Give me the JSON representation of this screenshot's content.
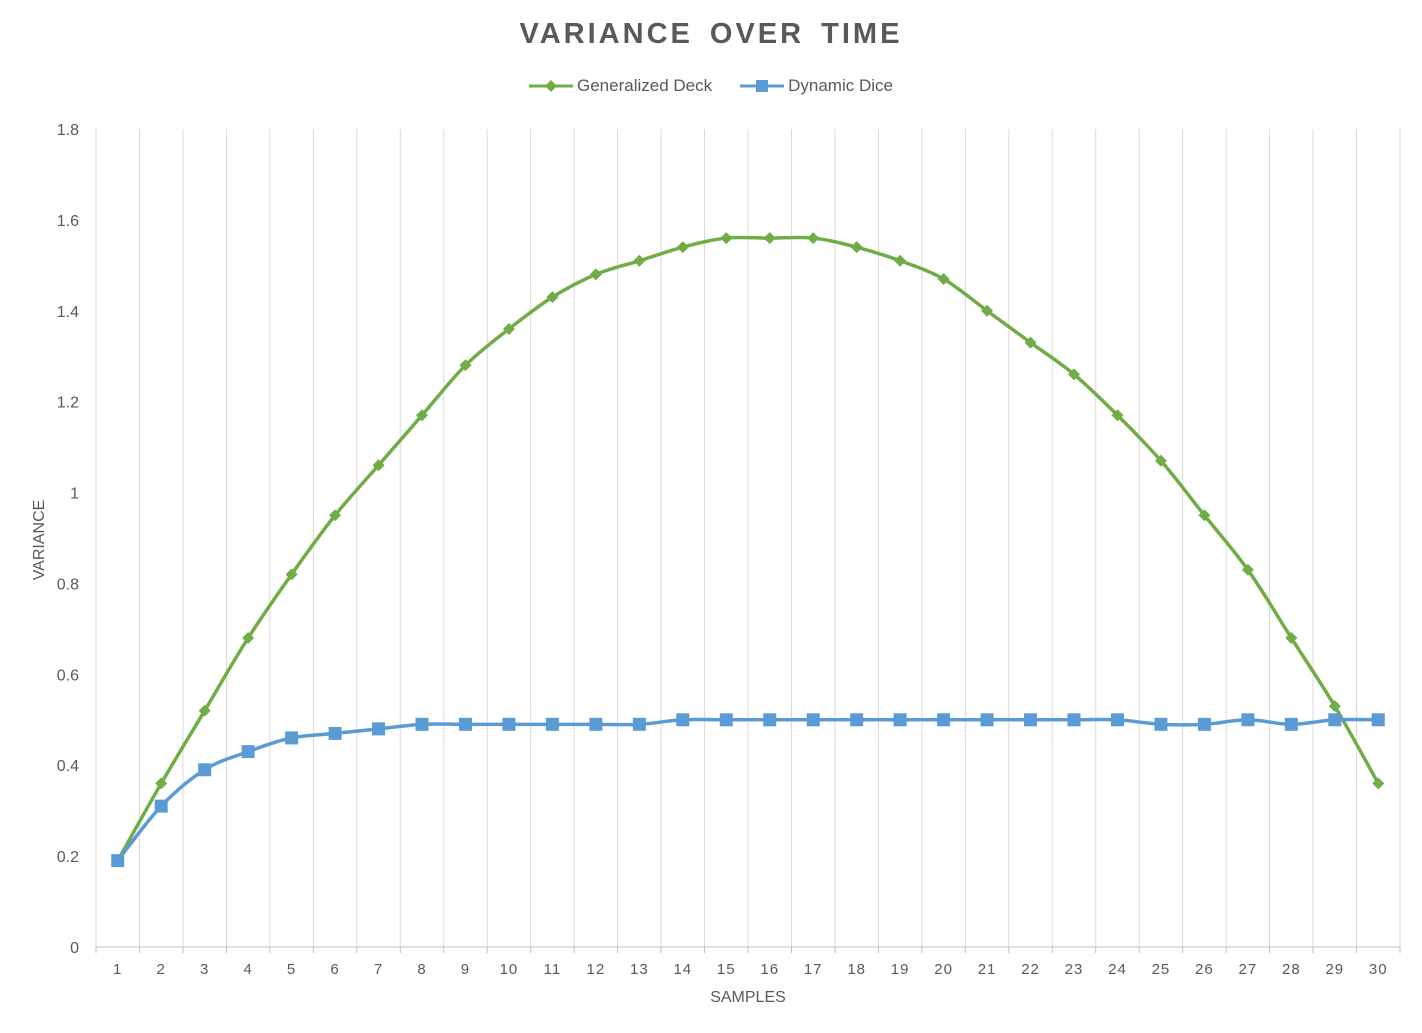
{
  "chart_data": {
    "type": "line",
    "title": "VARIANCE OVER TIME",
    "xlabel": "SAMPLES",
    "ylabel": "VARIANCE",
    "ylim": [
      0,
      1.8
    ],
    "yticks": [
      "0",
      "0.2",
      "0.4",
      "0.6",
      "0.8",
      "1",
      "1.2",
      "1.4",
      "1.6",
      "1.8"
    ],
    "grid": "vertical",
    "legend_position": "top",
    "categories": [
      "1",
      "2",
      "3",
      "4",
      "5",
      "6",
      "7",
      "8",
      "9",
      "10",
      "11",
      "12",
      "13",
      "14",
      "15",
      "16",
      "17",
      "18",
      "19",
      "20",
      "21",
      "22",
      "23",
      "24",
      "25",
      "26",
      "27",
      "28",
      "29",
      "30"
    ],
    "series": [
      {
        "name": "Generalized Deck",
        "color": "#70ad47",
        "marker": "diamond",
        "values": [
          0.19,
          0.36,
          0.52,
          0.68,
          0.82,
          0.95,
          1.06,
          1.17,
          1.28,
          1.36,
          1.43,
          1.48,
          1.51,
          1.54,
          1.56,
          1.56,
          1.56,
          1.54,
          1.51,
          1.47,
          1.4,
          1.33,
          1.26,
          1.17,
          1.07,
          0.95,
          0.83,
          0.68,
          0.53,
          0.36
        ]
      },
      {
        "name": "Dynamic Dice",
        "color": "#5b9bd5",
        "marker": "square",
        "values": [
          0.19,
          0.31,
          0.39,
          0.43,
          0.46,
          0.47,
          0.48,
          0.49,
          0.49,
          0.49,
          0.49,
          0.49,
          0.49,
          0.5,
          0.5,
          0.5,
          0.5,
          0.5,
          0.5,
          0.5,
          0.5,
          0.5,
          0.5,
          0.5,
          0.49,
          0.49,
          0.5,
          0.49,
          0.5,
          0.5
        ]
      }
    ]
  }
}
